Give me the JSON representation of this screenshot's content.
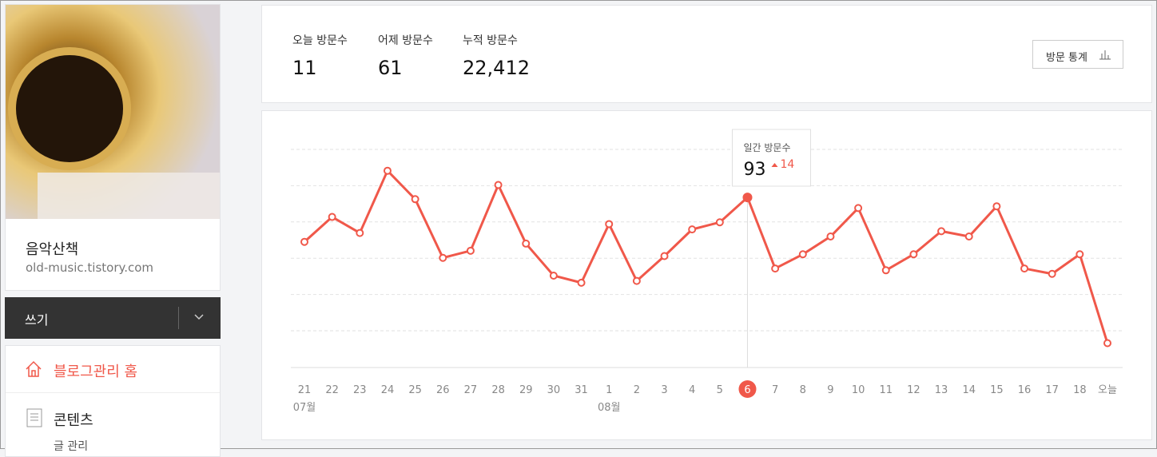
{
  "sidebar": {
    "blog_name": "음악산책",
    "blog_url": "old-music.tistory.com",
    "write_button": "쓰기",
    "menu": [
      {
        "label": "블로그관리 홈"
      },
      {
        "label": "콘텐츠",
        "sub": [
          "글 관리"
        ]
      }
    ]
  },
  "stats": {
    "items": [
      {
        "label": "오늘 방문수",
        "value": "11"
      },
      {
        "label": "어제 방문수",
        "value": "61"
      },
      {
        "label": "누적 방문수",
        "value": "22,412"
      }
    ],
    "button": "방문 통계"
  },
  "chart_data": {
    "type": "line",
    "color": "#f0584a",
    "categories": [
      "21",
      "22",
      "23",
      "24",
      "25",
      "26",
      "27",
      "28",
      "29",
      "30",
      "31",
      "1",
      "2",
      "3",
      "4",
      "5",
      "6",
      "7",
      "8",
      "9",
      "10",
      "11",
      "12",
      "13",
      "14",
      "15",
      "16",
      "17",
      "18",
      "오늘"
    ],
    "month_labels": [
      "07월",
      null,
      null,
      null,
      null,
      null,
      null,
      null,
      null,
      null,
      null,
      "08월",
      null,
      null,
      null,
      null,
      null,
      null,
      null,
      null,
      null,
      null,
      null,
      null,
      null,
      null,
      null,
      null,
      null,
      null
    ],
    "values": [
      68,
      82,
      73,
      108,
      92,
      59,
      63,
      100,
      67,
      49,
      45,
      78,
      46,
      60,
      75,
      79,
      93,
      53,
      61,
      71,
      87,
      52,
      61,
      74,
      71,
      88,
      53,
      50,
      61,
      11
    ],
    "ylim": [
      0,
      120
    ],
    "selected_index": 16,
    "tooltip": {
      "title": "일간 방문수",
      "change": 14
    }
  }
}
